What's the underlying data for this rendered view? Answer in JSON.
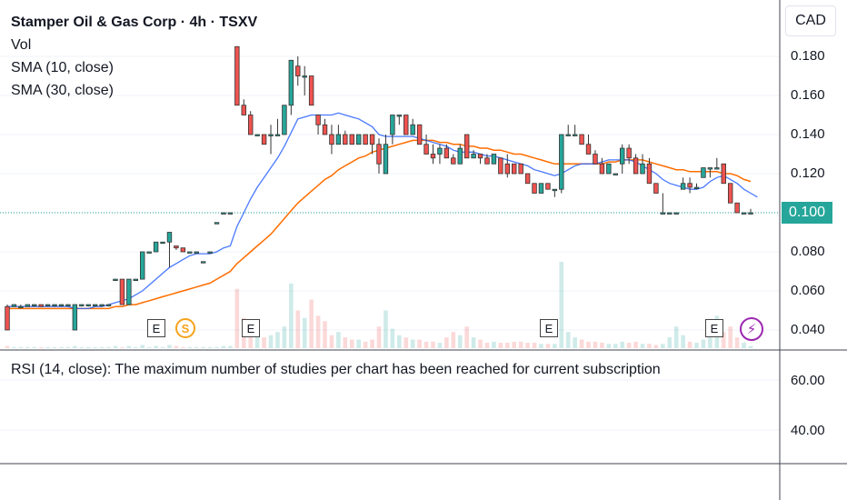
{
  "legend": {
    "title": "Stamper Oil & Gas Corp · 4h · TSXV",
    "vol": "Vol",
    "sma10": "SMA (10, close)",
    "sma30": "SMA (30, close)"
  },
  "currency": "CAD",
  "last_price": "0.100",
  "rsi_message": "RSI (14, close): The maximum number of studies per chart has been reached for current subscription",
  "event_markers": {
    "earnings": "E",
    "split": "S",
    "bolt": "⚡"
  },
  "colors": {
    "up": "#26a69a",
    "down": "#ef5350",
    "sma10": "#2962ff",
    "sma30": "#ff6d00"
  },
  "chart_data": {
    "type": "candlestick",
    "interval": "4h",
    "ylim": [
      0.035,
      0.19
    ],
    "y_ticks": [
      "0.180",
      "0.160",
      "0.140",
      "0.120",
      "0.100",
      "0.080",
      "0.060",
      "0.040"
    ],
    "rsi_ticks": [
      "60.00",
      "40.00"
    ],
    "last_price": 0.1,
    "candles": [
      [
        0.052,
        0.053,
        0.04,
        0.04
      ],
      [
        0.052,
        0.053,
        0.052,
        0.053
      ],
      [
        0.052,
        0.053,
        0.052,
        0.052
      ],
      [
        0.052,
        0.053,
        0.052,
        0.053
      ],
      [
        0.053,
        0.053,
        0.052,
        0.053
      ],
      [
        0.053,
        0.053,
        0.052,
        0.052
      ],
      [
        0.053,
        0.053,
        0.052,
        0.053
      ],
      [
        0.053,
        0.053,
        0.052,
        0.053
      ],
      [
        0.053,
        0.053,
        0.052,
        0.053
      ],
      [
        0.053,
        0.053,
        0.052,
        0.053
      ],
      [
        0.04,
        0.053,
        0.04,
        0.053
      ],
      [
        0.053,
        0.053,
        0.052,
        0.053
      ],
      [
        0.053,
        0.053,
        0.052,
        0.053
      ],
      [
        0.053,
        0.053,
        0.052,
        0.053
      ],
      [
        0.053,
        0.053,
        0.052,
        0.053
      ],
      [
        0.053,
        0.053,
        0.052,
        0.053
      ],
      [
        0.066,
        0.066,
        0.066,
        0.066
      ],
      [
        0.066,
        0.066,
        0.053,
        0.053
      ],
      [
        0.053,
        0.066,
        0.053,
        0.066
      ],
      [
        0.066,
        0.066,
        0.066,
        0.066
      ],
      [
        0.066,
        0.08,
        0.066,
        0.08
      ],
      [
        0.08,
        0.08,
        0.08,
        0.08
      ],
      [
        0.08,
        0.085,
        0.08,
        0.085
      ],
      [
        0.085,
        0.085,
        0.085,
        0.085
      ],
      [
        0.085,
        0.09,
        0.072,
        0.09
      ],
      [
        0.083,
        0.083,
        0.081,
        0.082
      ],
      [
        0.082,
        0.082,
        0.08,
        0.08
      ],
      [
        0.08,
        0.08,
        0.08,
        0.08
      ],
      [
        0.08,
        0.08,
        0.08,
        0.08
      ],
      [
        0.075,
        0.075,
        0.075,
        0.075
      ],
      [
        0.08,
        0.08,
        0.08,
        0.08
      ],
      [
        0.095,
        0.095,
        0.095,
        0.095
      ],
      [
        0.1,
        0.1,
        0.1,
        0.1
      ],
      [
        0.1,
        0.1,
        0.1,
        0.1
      ],
      [
        0.185,
        0.185,
        0.155,
        0.155
      ],
      [
        0.155,
        0.158,
        0.15,
        0.15
      ],
      [
        0.15,
        0.152,
        0.14,
        0.14
      ],
      [
        0.14,
        0.14,
        0.14,
        0.14
      ],
      [
        0.14,
        0.14,
        0.135,
        0.135
      ],
      [
        0.14,
        0.145,
        0.13,
        0.14
      ],
      [
        0.14,
        0.148,
        0.14,
        0.14
      ],
      [
        0.14,
        0.155,
        0.14,
        0.155
      ],
      [
        0.155,
        0.178,
        0.15,
        0.178
      ],
      [
        0.175,
        0.18,
        0.165,
        0.17
      ],
      [
        0.17,
        0.175,
        0.16,
        0.17
      ],
      [
        0.17,
        0.17,
        0.155,
        0.155
      ],
      [
        0.15,
        0.15,
        0.14,
        0.145
      ],
      [
        0.145,
        0.148,
        0.14,
        0.14
      ],
      [
        0.14,
        0.145,
        0.13,
        0.135
      ],
      [
        0.135,
        0.145,
        0.135,
        0.14
      ],
      [
        0.14,
        0.142,
        0.135,
        0.135
      ],
      [
        0.14,
        0.14,
        0.135,
        0.135
      ],
      [
        0.135,
        0.14,
        0.135,
        0.14
      ],
      [
        0.14,
        0.14,
        0.135,
        0.135
      ],
      [
        0.14,
        0.14,
        0.13,
        0.135
      ],
      [
        0.135,
        0.138,
        0.12,
        0.125
      ],
      [
        0.12,
        0.14,
        0.12,
        0.135
      ],
      [
        0.14,
        0.15,
        0.135,
        0.15
      ],
      [
        0.15,
        0.15,
        0.145,
        0.15
      ],
      [
        0.15,
        0.15,
        0.14,
        0.14
      ],
      [
        0.14,
        0.148,
        0.14,
        0.145
      ],
      [
        0.145,
        0.145,
        0.135,
        0.135
      ],
      [
        0.135,
        0.14,
        0.13,
        0.13
      ],
      [
        0.13,
        0.135,
        0.125,
        0.128
      ],
      [
        0.13,
        0.135,
        0.125,
        0.133
      ],
      [
        0.133,
        0.135,
        0.128,
        0.128
      ],
      [
        0.128,
        0.13,
        0.125,
        0.125
      ],
      [
        0.125,
        0.135,
        0.125,
        0.133
      ],
      [
        0.14,
        0.14,
        0.128,
        0.128
      ],
      [
        0.128,
        0.132,
        0.128,
        0.13
      ],
      [
        0.13,
        0.13,
        0.125,
        0.128
      ],
      [
        0.128,
        0.13,
        0.125,
        0.125
      ],
      [
        0.125,
        0.13,
        0.125,
        0.13
      ],
      [
        0.128,
        0.128,
        0.12,
        0.12
      ],
      [
        0.125,
        0.13,
        0.118,
        0.12
      ],
      [
        0.125,
        0.125,
        0.12,
        0.12
      ],
      [
        0.125,
        0.125,
        0.12,
        0.12
      ],
      [
        0.12,
        0.12,
        0.115,
        0.115
      ],
      [
        0.115,
        0.115,
        0.11,
        0.11
      ],
      [
        0.11,
        0.115,
        0.11,
        0.115
      ],
      [
        0.115,
        0.115,
        0.112,
        0.112
      ],
      [
        0.112,
        0.112,
        0.108,
        0.112
      ],
      [
        0.112,
        0.14,
        0.11,
        0.14
      ],
      [
        0.14,
        0.145,
        0.14,
        0.14
      ],
      [
        0.14,
        0.145,
        0.14,
        0.14
      ],
      [
        0.14,
        0.14,
        0.135,
        0.135
      ],
      [
        0.135,
        0.14,
        0.13,
        0.13
      ],
      [
        0.13,
        0.132,
        0.125,
        0.125
      ],
      [
        0.125,
        0.128,
        0.12,
        0.12
      ],
      [
        0.12,
        0.125,
        0.12,
        0.125
      ],
      [
        0.12,
        0.12,
        0.12,
        0.12
      ],
      [
        0.125,
        0.135,
        0.12,
        0.133
      ],
      [
        0.133,
        0.135,
        0.125,
        0.128
      ],
      [
        0.128,
        0.13,
        0.12,
        0.12
      ],
      [
        0.12,
        0.13,
        0.12,
        0.125
      ],
      [
        0.125,
        0.128,
        0.115,
        0.115
      ],
      [
        0.115,
        0.115,
        0.11,
        0.11
      ],
      [
        0.1,
        0.11,
        0.1,
        0.1
      ],
      [
        0.1,
        0.1,
        0.1,
        0.1
      ],
      [
        0.1,
        0.1,
        0.1,
        0.1
      ],
      [
        0.112,
        0.118,
        0.112,
        0.115
      ],
      [
        0.115,
        0.118,
        0.11,
        0.113
      ],
      [
        0.113,
        0.115,
        0.112,
        0.113
      ],
      [
        0.118,
        0.123,
        0.118,
        0.123
      ],
      [
        0.123,
        0.123,
        0.118,
        0.123
      ],
      [
        0.123,
        0.128,
        0.123,
        0.123
      ],
      [
        0.125,
        0.125,
        0.115,
        0.115
      ],
      [
        0.115,
        0.115,
        0.105,
        0.105
      ],
      [
        0.105,
        0.105,
        0.1,
        0.1
      ],
      [
        0.1,
        0.1,
        0.1,
        0.1
      ],
      [
        0.1,
        0.102,
        0.1,
        0.1
      ]
    ],
    "sma10": [
      0.052,
      0.052,
      0.052,
      0.052,
      0.052,
      0.052,
      0.052,
      0.052,
      0.052,
      0.052,
      0.051,
      0.051,
      0.051,
      0.052,
      0.052,
      0.053,
      0.054,
      0.055,
      0.056,
      0.058,
      0.06,
      0.063,
      0.066,
      0.069,
      0.072,
      0.074,
      0.076,
      0.078,
      0.079,
      0.079,
      0.079,
      0.08,
      0.082,
      0.083,
      0.093,
      0.1,
      0.107,
      0.113,
      0.118,
      0.123,
      0.128,
      0.134,
      0.141,
      0.148,
      0.149,
      0.15,
      0.15,
      0.15,
      0.15,
      0.151,
      0.15,
      0.149,
      0.148,
      0.146,
      0.144,
      0.14,
      0.139,
      0.139,
      0.139,
      0.139,
      0.139,
      0.138,
      0.137,
      0.136,
      0.135,
      0.134,
      0.132,
      0.131,
      0.131,
      0.131,
      0.13,
      0.129,
      0.129,
      0.128,
      0.127,
      0.126,
      0.125,
      0.124,
      0.122,
      0.121,
      0.12,
      0.119,
      0.12,
      0.122,
      0.124,
      0.125,
      0.125,
      0.125,
      0.126,
      0.127,
      0.127,
      0.127,
      0.127,
      0.126,
      0.124,
      0.122,
      0.12,
      0.117,
      0.115,
      0.114,
      0.113,
      0.112,
      0.112,
      0.113,
      0.116,
      0.118,
      0.119,
      0.117,
      0.115,
      0.112,
      0.11,
      0.108
    ],
    "sma30": [
      0.051,
      0.051,
      0.051,
      0.051,
      0.051,
      0.051,
      0.051,
      0.051,
      0.051,
      0.051,
      0.051,
      0.051,
      0.051,
      0.051,
      0.051,
      0.051,
      0.052,
      0.052,
      0.053,
      0.053,
      0.054,
      0.055,
      0.056,
      0.057,
      0.058,
      0.059,
      0.06,
      0.061,
      0.062,
      0.063,
      0.064,
      0.066,
      0.068,
      0.07,
      0.074,
      0.077,
      0.08,
      0.083,
      0.086,
      0.089,
      0.093,
      0.097,
      0.101,
      0.105,
      0.108,
      0.111,
      0.114,
      0.117,
      0.119,
      0.122,
      0.124,
      0.126,
      0.128,
      0.129,
      0.131,
      0.132,
      0.133,
      0.134,
      0.135,
      0.136,
      0.137,
      0.137,
      0.137,
      0.137,
      0.136,
      0.136,
      0.135,
      0.135,
      0.134,
      0.134,
      0.133,
      0.133,
      0.132,
      0.132,
      0.131,
      0.13,
      0.13,
      0.129,
      0.128,
      0.127,
      0.126,
      0.125,
      0.125,
      0.125,
      0.125,
      0.125,
      0.125,
      0.125,
      0.125,
      0.126,
      0.126,
      0.127,
      0.127,
      0.127,
      0.127,
      0.126,
      0.125,
      0.124,
      0.123,
      0.122,
      0.122,
      0.121,
      0.121,
      0.121,
      0.121,
      0.121,
      0.12,
      0.12,
      0.119,
      0.117,
      0.116
    ],
    "volume": [
      0.02,
      0.01,
      0.01,
      0.01,
      0.01,
      0.01,
      0.01,
      0.01,
      0.01,
      0.01,
      0.02,
      0.01,
      0.01,
      0.01,
      0.01,
      0.01,
      0.02,
      0.01,
      0.02,
      0.01,
      0.03,
      0.01,
      0.02,
      0.01,
      0.03,
      0.02,
      0.01,
      0.01,
      0.01,
      0.01,
      0.01,
      0.01,
      0.02,
      0.02,
      0.55,
      0.28,
      0.18,
      0.15,
      0.1,
      0.12,
      0.15,
      0.2,
      0.6,
      0.35,
      0.28,
      0.45,
      0.3,
      0.25,
      0.12,
      0.15,
      0.1,
      0.08,
      0.08,
      0.06,
      0.08,
      0.2,
      0.35,
      0.18,
      0.12,
      0.1,
      0.08,
      0.08,
      0.06,
      0.06,
      0.05,
      0.1,
      0.15,
      0.12,
      0.2,
      0.1,
      0.08,
      0.05,
      0.06,
      0.05,
      0.05,
      0.06,
      0.06,
      0.05,
      0.05,
      0.04,
      0.04,
      0.04,
      0.8,
      0.15,
      0.1,
      0.08,
      0.06,
      0.06,
      0.05,
      0.04,
      0.04,
      0.06,
      0.05,
      0.06,
      0.04,
      0.04,
      0.03,
      0.04,
      0.1,
      0.2,
      0.12,
      0.06,
      0.05,
      0.08,
      0.1,
      0.3,
      0.15,
      0.2,
      0.1,
      0.05,
      0.02
    ]
  }
}
